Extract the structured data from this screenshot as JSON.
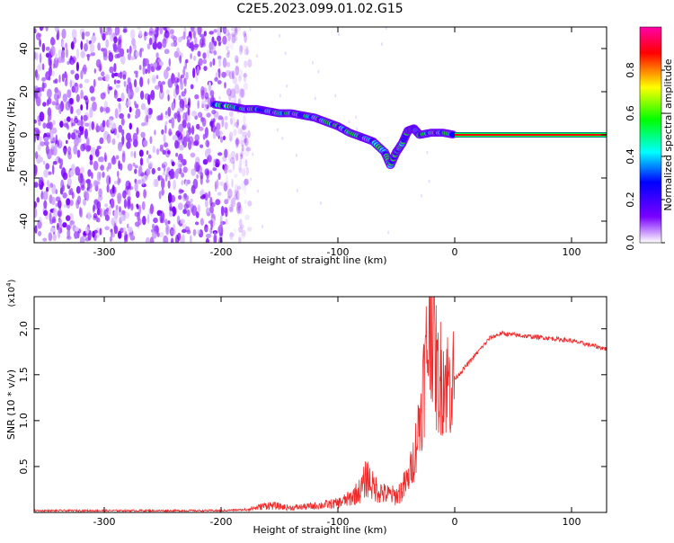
{
  "title": "C2E5.2023.099.01.02.G15",
  "chart_data": [
    {
      "type": "heatmap",
      "title": "C2E5.2023.099.01.02.G15",
      "xlabel": "Height of straight line (km)",
      "ylabel": "Frequency (Hz)",
      "xlim": [
        -360,
        130
      ],
      "ylim": [
        -50,
        50
      ],
      "x_ticks": [
        -300,
        -200,
        -100,
        0,
        100
      ],
      "y_ticks": [
        -40,
        -20,
        0,
        20,
        40
      ],
      "colorbar": {
        "label": "Normalized spectral amplitude",
        "range": [
          0,
          1
        ],
        "ticks": [
          "0.0",
          "0.2",
          "0.4",
          "0.6",
          "0.8"
        ],
        "colormap": [
          "#ffffff",
          "#7a00ff",
          "#0000ff",
          "#00ffff",
          "#00ff00",
          "#ffff00",
          "#ff0000",
          "#ff00aa"
        ]
      },
      "noise_region_x": [
        -360,
        -180
      ],
      "signal_track": [
        {
          "x": -205,
          "y": 14
        },
        {
          "x": -190,
          "y": 13
        },
        {
          "x": -180,
          "y": 12
        },
        {
          "x": -170,
          "y": 12
        },
        {
          "x": -160,
          "y": 11
        },
        {
          "x": -150,
          "y": 10
        },
        {
          "x": -140,
          "y": 10
        },
        {
          "x": -130,
          "y": 9
        },
        {
          "x": -120,
          "y": 8
        },
        {
          "x": -110,
          "y": 6
        },
        {
          "x": -100,
          "y": 4
        },
        {
          "x": -90,
          "y": 1
        },
        {
          "x": -80,
          "y": -1
        },
        {
          "x": -70,
          "y": -3
        },
        {
          "x": -60,
          "y": -8
        },
        {
          "x": -55,
          "y": -14
        },
        {
          "x": -50,
          "y": -8
        },
        {
          "x": -45,
          "y": -4
        },
        {
          "x": -40,
          "y": 2
        },
        {
          "x": -35,
          "y": 3
        },
        {
          "x": -30,
          "y": 0
        },
        {
          "x": -20,
          "y": 1
        },
        {
          "x": -10,
          "y": 1
        },
        {
          "x": 0,
          "y": 0
        }
      ],
      "steady_line": {
        "x_start": 0,
        "x_end": 130,
        "y": 0
      }
    },
    {
      "type": "line",
      "xlabel": "Height of straight line (km)",
      "ylabel": "SNR (10 * v/v)",
      "y_scale_label": "(x10",
      "y_scale_exponent": "4",
      "y_scale_suffix": ")",
      "xlim": [
        -360,
        130
      ],
      "ylim": [
        0,
        2.35
      ],
      "x_ticks": [
        -300,
        -200,
        -100,
        0,
        100
      ],
      "y_ticks": [
        "0.5",
        "1.0",
        "1.5",
        "2.0"
      ],
      "series": [
        {
          "color": "#ee2a2a",
          "x": [
            -360,
            -300,
            -250,
            -200,
            -180,
            -170,
            -160,
            -140,
            -120,
            -100,
            -90,
            -80,
            -75,
            -70,
            -60,
            -50,
            -45,
            -40,
            -35,
            -30,
            -25,
            -20,
            -15,
            -10,
            -5,
            0,
            10,
            20,
            30,
            40,
            60,
            80,
            100,
            130
          ],
          "y": [
            0.02,
            0.02,
            0.02,
            0.02,
            0.03,
            0.05,
            0.08,
            0.05,
            0.07,
            0.1,
            0.15,
            0.25,
            0.4,
            0.28,
            0.2,
            0.18,
            0.25,
            0.35,
            0.6,
            1.0,
            1.6,
            2.25,
            1.45,
            1.5,
            1.4,
            1.45,
            1.6,
            1.75,
            1.9,
            1.95,
            1.92,
            1.9,
            1.87,
            1.78
          ]
        }
      ]
    }
  ]
}
